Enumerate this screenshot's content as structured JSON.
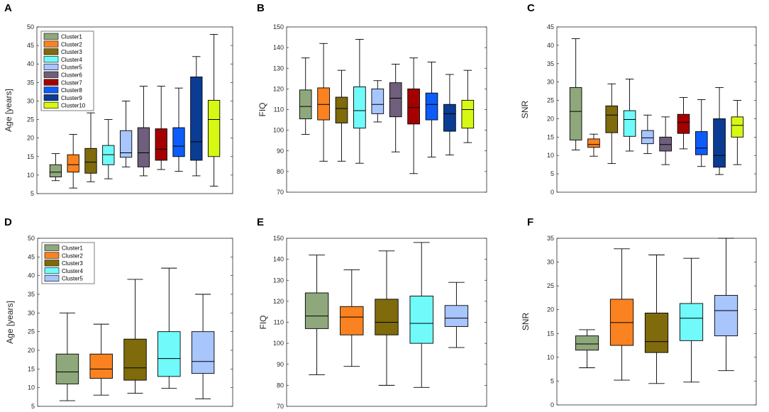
{
  "chart_data": [
    {
      "type": "box",
      "panel": "A",
      "ylabel": "Age [years]",
      "ylim": [
        5,
        50
      ],
      "yticks": [
        5,
        10,
        15,
        20,
        25,
        30,
        35,
        40,
        45,
        50
      ],
      "legend": [
        "Cluster1",
        "Cluster2",
        "Cluster3",
        "Cluster4",
        "Cluster5",
        "Cluster6",
        "Cluster7",
        "Cluster8",
        "Cluster9",
        "Cluster10"
      ],
      "legend_position": "top-left",
      "boxes": [
        {
          "name": "Cluster1",
          "min": 8.5,
          "q1": 9.5,
          "median": 10.8,
          "q3": 12.8,
          "max": 15.8
        },
        {
          "name": "Cluster2",
          "min": 6.5,
          "q1": 10.8,
          "median": 12.8,
          "q3": 15.5,
          "max": 21
        },
        {
          "name": "Cluster3",
          "min": 8.2,
          "q1": 10.5,
          "median": 13.5,
          "q3": 17.2,
          "max": 26.8
        },
        {
          "name": "Cluster4",
          "min": 9,
          "q1": 12.8,
          "median": 15.5,
          "q3": 18,
          "max": 25
        },
        {
          "name": "Cluster5",
          "min": 12.2,
          "q1": 14.8,
          "median": 16,
          "q3": 22,
          "max": 30
        },
        {
          "name": "Cluster6",
          "min": 9.8,
          "q1": 12.2,
          "median": 16,
          "q3": 22.8,
          "max": 34
        },
        {
          "name": "Cluster7",
          "min": 11.5,
          "q1": 14,
          "median": 17,
          "q3": 22.5,
          "max": 34
        },
        {
          "name": "Cluster8",
          "min": 11,
          "q1": 15,
          "median": 17.8,
          "q3": 22.8,
          "max": 33.5
        },
        {
          "name": "Cluster9",
          "min": 9.8,
          "q1": 14,
          "median": 19,
          "q3": 36.5,
          "max": 42
        },
        {
          "name": "Cluster10",
          "min": 7,
          "q1": 15,
          "median": 25,
          "q3": 30.2,
          "max": 48
        }
      ]
    },
    {
      "type": "box",
      "panel": "B",
      "ylabel": "FIQ",
      "ylim": [
        70,
        150
      ],
      "yticks": [
        70,
        80,
        90,
        100,
        110,
        120,
        130,
        140,
        150
      ],
      "boxes": [
        {
          "name": "Cluster1",
          "min": 98,
          "q1": 105.5,
          "median": 111.5,
          "q3": 119.5,
          "max": 135
        },
        {
          "name": "Cluster2",
          "min": 85,
          "q1": 105,
          "median": 112.5,
          "q3": 120.5,
          "max": 142
        },
        {
          "name": "Cluster3",
          "min": 85,
          "q1": 103.5,
          "median": 110.5,
          "q3": 116,
          "max": 129
        },
        {
          "name": "Cluster4",
          "min": 84,
          "q1": 101,
          "median": 109.5,
          "q3": 121,
          "max": 144
        },
        {
          "name": "Cluster5",
          "min": 104,
          "q1": 108,
          "median": 112.5,
          "q3": 120,
          "max": 124
        },
        {
          "name": "Cluster6",
          "min": 89.5,
          "q1": 106.5,
          "median": 115.5,
          "q3": 123,
          "max": 132
        },
        {
          "name": "Cluster7",
          "min": 79,
          "q1": 103,
          "median": 111,
          "q3": 120,
          "max": 135
        },
        {
          "name": "Cluster8",
          "min": 87,
          "q1": 105,
          "median": 112.5,
          "q3": 118,
          "max": 133
        },
        {
          "name": "Cluster9",
          "min": 88,
          "q1": 99.5,
          "median": 108,
          "q3": 112.5,
          "max": 127
        },
        {
          "name": "Cluster10",
          "min": 94,
          "q1": 101,
          "median": 110,
          "q3": 114.5,
          "max": 129
        }
      ]
    },
    {
      "type": "box",
      "panel": "C",
      "ylabel": "SNR",
      "ylim": [
        0,
        45
      ],
      "yticks": [
        0,
        5,
        10,
        15,
        20,
        25,
        30,
        35,
        40,
        45
      ],
      "boxes": [
        {
          "name": "Cluster1",
          "min": 11.5,
          "q1": 14.2,
          "median": 22,
          "q3": 28.5,
          "max": 41.8
        },
        {
          "name": "Cluster2",
          "min": 9.8,
          "q1": 12.2,
          "median": 13,
          "q3": 14.5,
          "max": 15.8
        },
        {
          "name": "Cluster3",
          "min": 7.8,
          "q1": 16.2,
          "median": 21,
          "q3": 23.5,
          "max": 29.5
        },
        {
          "name": "Cluster4",
          "min": 11.2,
          "q1": 15.2,
          "median": 19.8,
          "q3": 22.2,
          "max": 30.8
        },
        {
          "name": "Cluster5",
          "min": 10.5,
          "q1": 13.2,
          "median": 14.8,
          "q3": 16.8,
          "max": 21
        },
        {
          "name": "Cluster6",
          "min": 7.5,
          "q1": 11.2,
          "median": 13,
          "q3": 15,
          "max": 20.5
        },
        {
          "name": "Cluster7",
          "min": 11.8,
          "q1": 16,
          "median": 19,
          "q3": 21.2,
          "max": 25.8
        },
        {
          "name": "Cluster8",
          "min": 7,
          "q1": 10.2,
          "median": 12,
          "q3": 16.5,
          "max": 25.2
        },
        {
          "name": "Cluster9",
          "min": 4.8,
          "q1": 6.8,
          "median": 10,
          "q3": 20,
          "max": 28.5
        },
        {
          "name": "Cluster10",
          "min": 7.5,
          "q1": 15,
          "median": 18.2,
          "q3": 20.5,
          "max": 25
        }
      ]
    },
    {
      "type": "box",
      "panel": "D",
      "ylabel": "Age [years]",
      "ylim": [
        5,
        50
      ],
      "yticks": [
        5,
        10,
        15,
        20,
        25,
        30,
        35,
        40,
        45,
        50
      ],
      "legend": [
        "Cluster1",
        "Cluster2",
        "Cluster3",
        "Cluster4",
        "Cluster5"
      ],
      "legend_position": "top-left",
      "boxes": [
        {
          "name": "Cluster1",
          "min": 6.5,
          "q1": 11,
          "median": 14.2,
          "q3": 19,
          "max": 30
        },
        {
          "name": "Cluster2",
          "min": 8,
          "q1": 12.5,
          "median": 15,
          "q3": 19,
          "max": 27
        },
        {
          "name": "Cluster3",
          "min": 8.5,
          "q1": 12,
          "median": 15.3,
          "q3": 23,
          "max": 39
        },
        {
          "name": "Cluster4",
          "min": 9.8,
          "q1": 13,
          "median": 17.8,
          "q3": 25,
          "max": 42
        },
        {
          "name": "Cluster5",
          "min": 7,
          "q1": 13.8,
          "median": 17,
          "q3": 25,
          "max": 35
        }
      ]
    },
    {
      "type": "box",
      "panel": "E",
      "ylabel": "FIQ",
      "ylim": [
        70,
        150
      ],
      "yticks": [
        70,
        80,
        90,
        100,
        110,
        120,
        130,
        140,
        150
      ],
      "boxes": [
        {
          "name": "Cluster1",
          "min": 85,
          "q1": 107,
          "median": 113,
          "q3": 124,
          "max": 142
        },
        {
          "name": "Cluster2",
          "min": 89,
          "q1": 104,
          "median": 112.5,
          "q3": 117.5,
          "max": 135
        },
        {
          "name": "Cluster3",
          "min": 80,
          "q1": 104,
          "median": 110,
          "q3": 121,
          "max": 144
        },
        {
          "name": "Cluster4",
          "min": 79,
          "q1": 100,
          "median": 109.5,
          "q3": 122.5,
          "max": 148
        },
        {
          "name": "Cluster5",
          "min": 98,
          "q1": 108,
          "median": 112,
          "q3": 118,
          "max": 129
        }
      ]
    },
    {
      "type": "box",
      "panel": "F",
      "ylabel": "SNR",
      "ylim": [
        0,
        35
      ],
      "yticks": [
        0,
        5,
        10,
        15,
        20,
        25,
        30,
        35
      ],
      "boxes": [
        {
          "name": "Cluster1",
          "min": 7.8,
          "q1": 11.5,
          "median": 12.8,
          "q3": 14.5,
          "max": 15.8
        },
        {
          "name": "Cluster2",
          "min": 5.2,
          "q1": 12.5,
          "median": 17.3,
          "q3": 22.2,
          "max": 32.8
        },
        {
          "name": "Cluster3",
          "min": 4.5,
          "q1": 11,
          "median": 13.3,
          "q3": 19.3,
          "max": 31.5
        },
        {
          "name": "Cluster4",
          "min": 4.8,
          "q1": 13.5,
          "median": 18.2,
          "q3": 21.3,
          "max": 30.8
        },
        {
          "name": "Cluster5",
          "min": 7.2,
          "q1": 14.5,
          "median": 19.8,
          "q3": 23,
          "max": 35
        }
      ]
    }
  ],
  "colors": {
    "Cluster1": "#8ea87b",
    "Cluster2": "#fb8220",
    "Cluster3": "#7f6a0c",
    "Cluster4": "#70fbfa",
    "Cluster5": "#a8c5fc",
    "Cluster6": "#6f5f7c",
    "Cluster7": "#a50000",
    "Cluster8": "#0d5cfa",
    "Cluster9": "#0b3c94",
    "Cluster10": "#d7f813"
  }
}
